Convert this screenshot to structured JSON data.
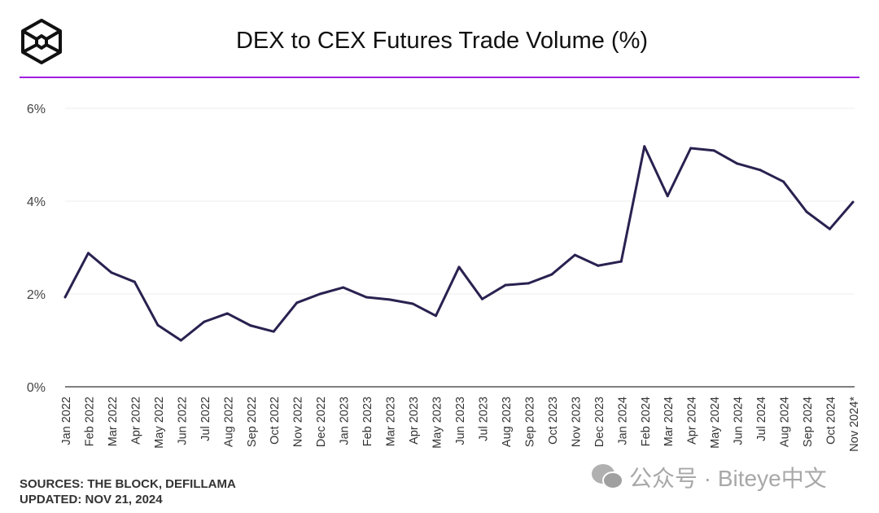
{
  "header": {
    "title": "DEX to CEX Futures Trade Volume (%)"
  },
  "colors": {
    "line": "#2a2150",
    "accent": "#a020e0"
  },
  "chart_data": {
    "type": "line",
    "title": "DEX to CEX Futures Trade Volume (%)",
    "xlabel": "",
    "ylabel": "",
    "ylim": [
      0,
      6
    ],
    "yticks": [
      "0%",
      "2%",
      "4%",
      "6%"
    ],
    "ytick_values": [
      0,
      2,
      4,
      6
    ],
    "grid": true,
    "categories": [
      "Jan 2022",
      "Feb 2022",
      "Mar 2022",
      "Apr 2022",
      "May 2022",
      "Jun 2022",
      "Jul 2022",
      "Aug 2022",
      "Sep 2022",
      "Oct 2022",
      "Nov 2022",
      "Dec 2022",
      "Jan 2023",
      "Feb 2023",
      "Mar 2023",
      "Apr 2023",
      "May 2023",
      "Jun 2023",
      "Jul 2023",
      "Aug 2023",
      "Sep 2023",
      "Oct 2023",
      "Nov 2023",
      "Dec 2023",
      "Jan 2024",
      "Feb 2024",
      "Mar 2024",
      "Apr 2024",
      "May 2024",
      "Jun 2024",
      "Jul 2024",
      "Aug 2024",
      "Sep 2024",
      "Oct 2024",
      "Nov 2024*"
    ],
    "series": [
      {
        "name": "DEX to CEX Futures Trade Volume (%)",
        "values": [
          1.93,
          2.88,
          2.46,
          2.26,
          1.33,
          1.0,
          1.4,
          1.58,
          1.32,
          1.19,
          1.81,
          2.0,
          2.14,
          1.93,
          1.88,
          1.79,
          1.53,
          2.58,
          1.89,
          2.19,
          2.23,
          2.42,
          2.84,
          2.61,
          2.7,
          5.18,
          4.11,
          5.14,
          5.09,
          4.81,
          4.67,
          4.42,
          3.77,
          3.4,
          3.98
        ]
      }
    ]
  },
  "footer": {
    "sources": "SOURCES: THE BLOCK, DEFILLAMA",
    "updated": "UPDATED: NOV 21, 2024"
  },
  "watermark": {
    "text": "公众号 · Biteye中文"
  }
}
